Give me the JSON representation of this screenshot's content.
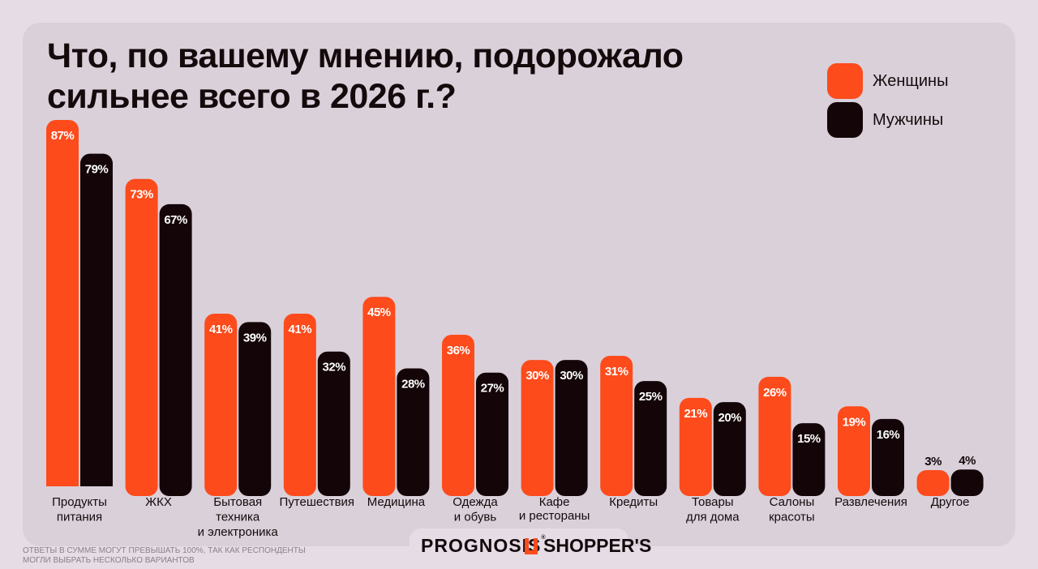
{
  "title": "Что, по вашему мнению, подорожало\nсильнее всего в 2026 г.?",
  "legend": {
    "women": "Женщины",
    "men": "Мужчины"
  },
  "colors": {
    "women": "#fd4b1c",
    "men": "#140608",
    "background": "#e6dce6",
    "card": "#dad0da"
  },
  "footnote": "Ответы в сумме могут превышать 100%, так как респонденты\nмогли выбрать несколько вариантов",
  "logos": {
    "prognosis": "PROGNOSIS",
    "prognosis_mark": "®",
    "shoppers": "SHOPPER'S"
  },
  "chart_data": {
    "type": "bar",
    "categories": [
      "Продукты\nпитания",
      "ЖКХ",
      "Бытовая\nтехника\nи электроника",
      "Путешествия",
      "Медицина",
      "Одежда\nи обувь",
      "Кафе\nи рестораны",
      "Кредиты",
      "Товары\nдля дома",
      "Салоны\nкрасоты",
      "Развлечения",
      "Другое"
    ],
    "series": [
      {
        "name": "Женщины",
        "values": [
          87,
          73,
          41,
          41,
          45,
          36,
          30,
          31,
          21,
          26,
          19,
          3
        ],
        "labels": [
          "87%",
          "73%",
          "41%",
          "41%",
          "45%",
          "36%",
          "30%",
          "31%",
          "21%",
          "26%",
          "19%",
          "3%"
        ]
      },
      {
        "name": "Мужчины",
        "values": [
          79,
          67,
          39,
          32,
          28,
          27,
          30,
          25,
          20,
          15,
          16,
          4
        ],
        "labels": [
          "79%",
          "67%",
          "39%",
          "32%",
          "28%",
          "27%",
          "30%",
          "25%",
          "20%",
          "15%",
          "16%",
          "4%"
        ]
      }
    ],
    "ylim": [
      0,
      87
    ],
    "grid": false,
    "legend_position": "top-right"
  }
}
